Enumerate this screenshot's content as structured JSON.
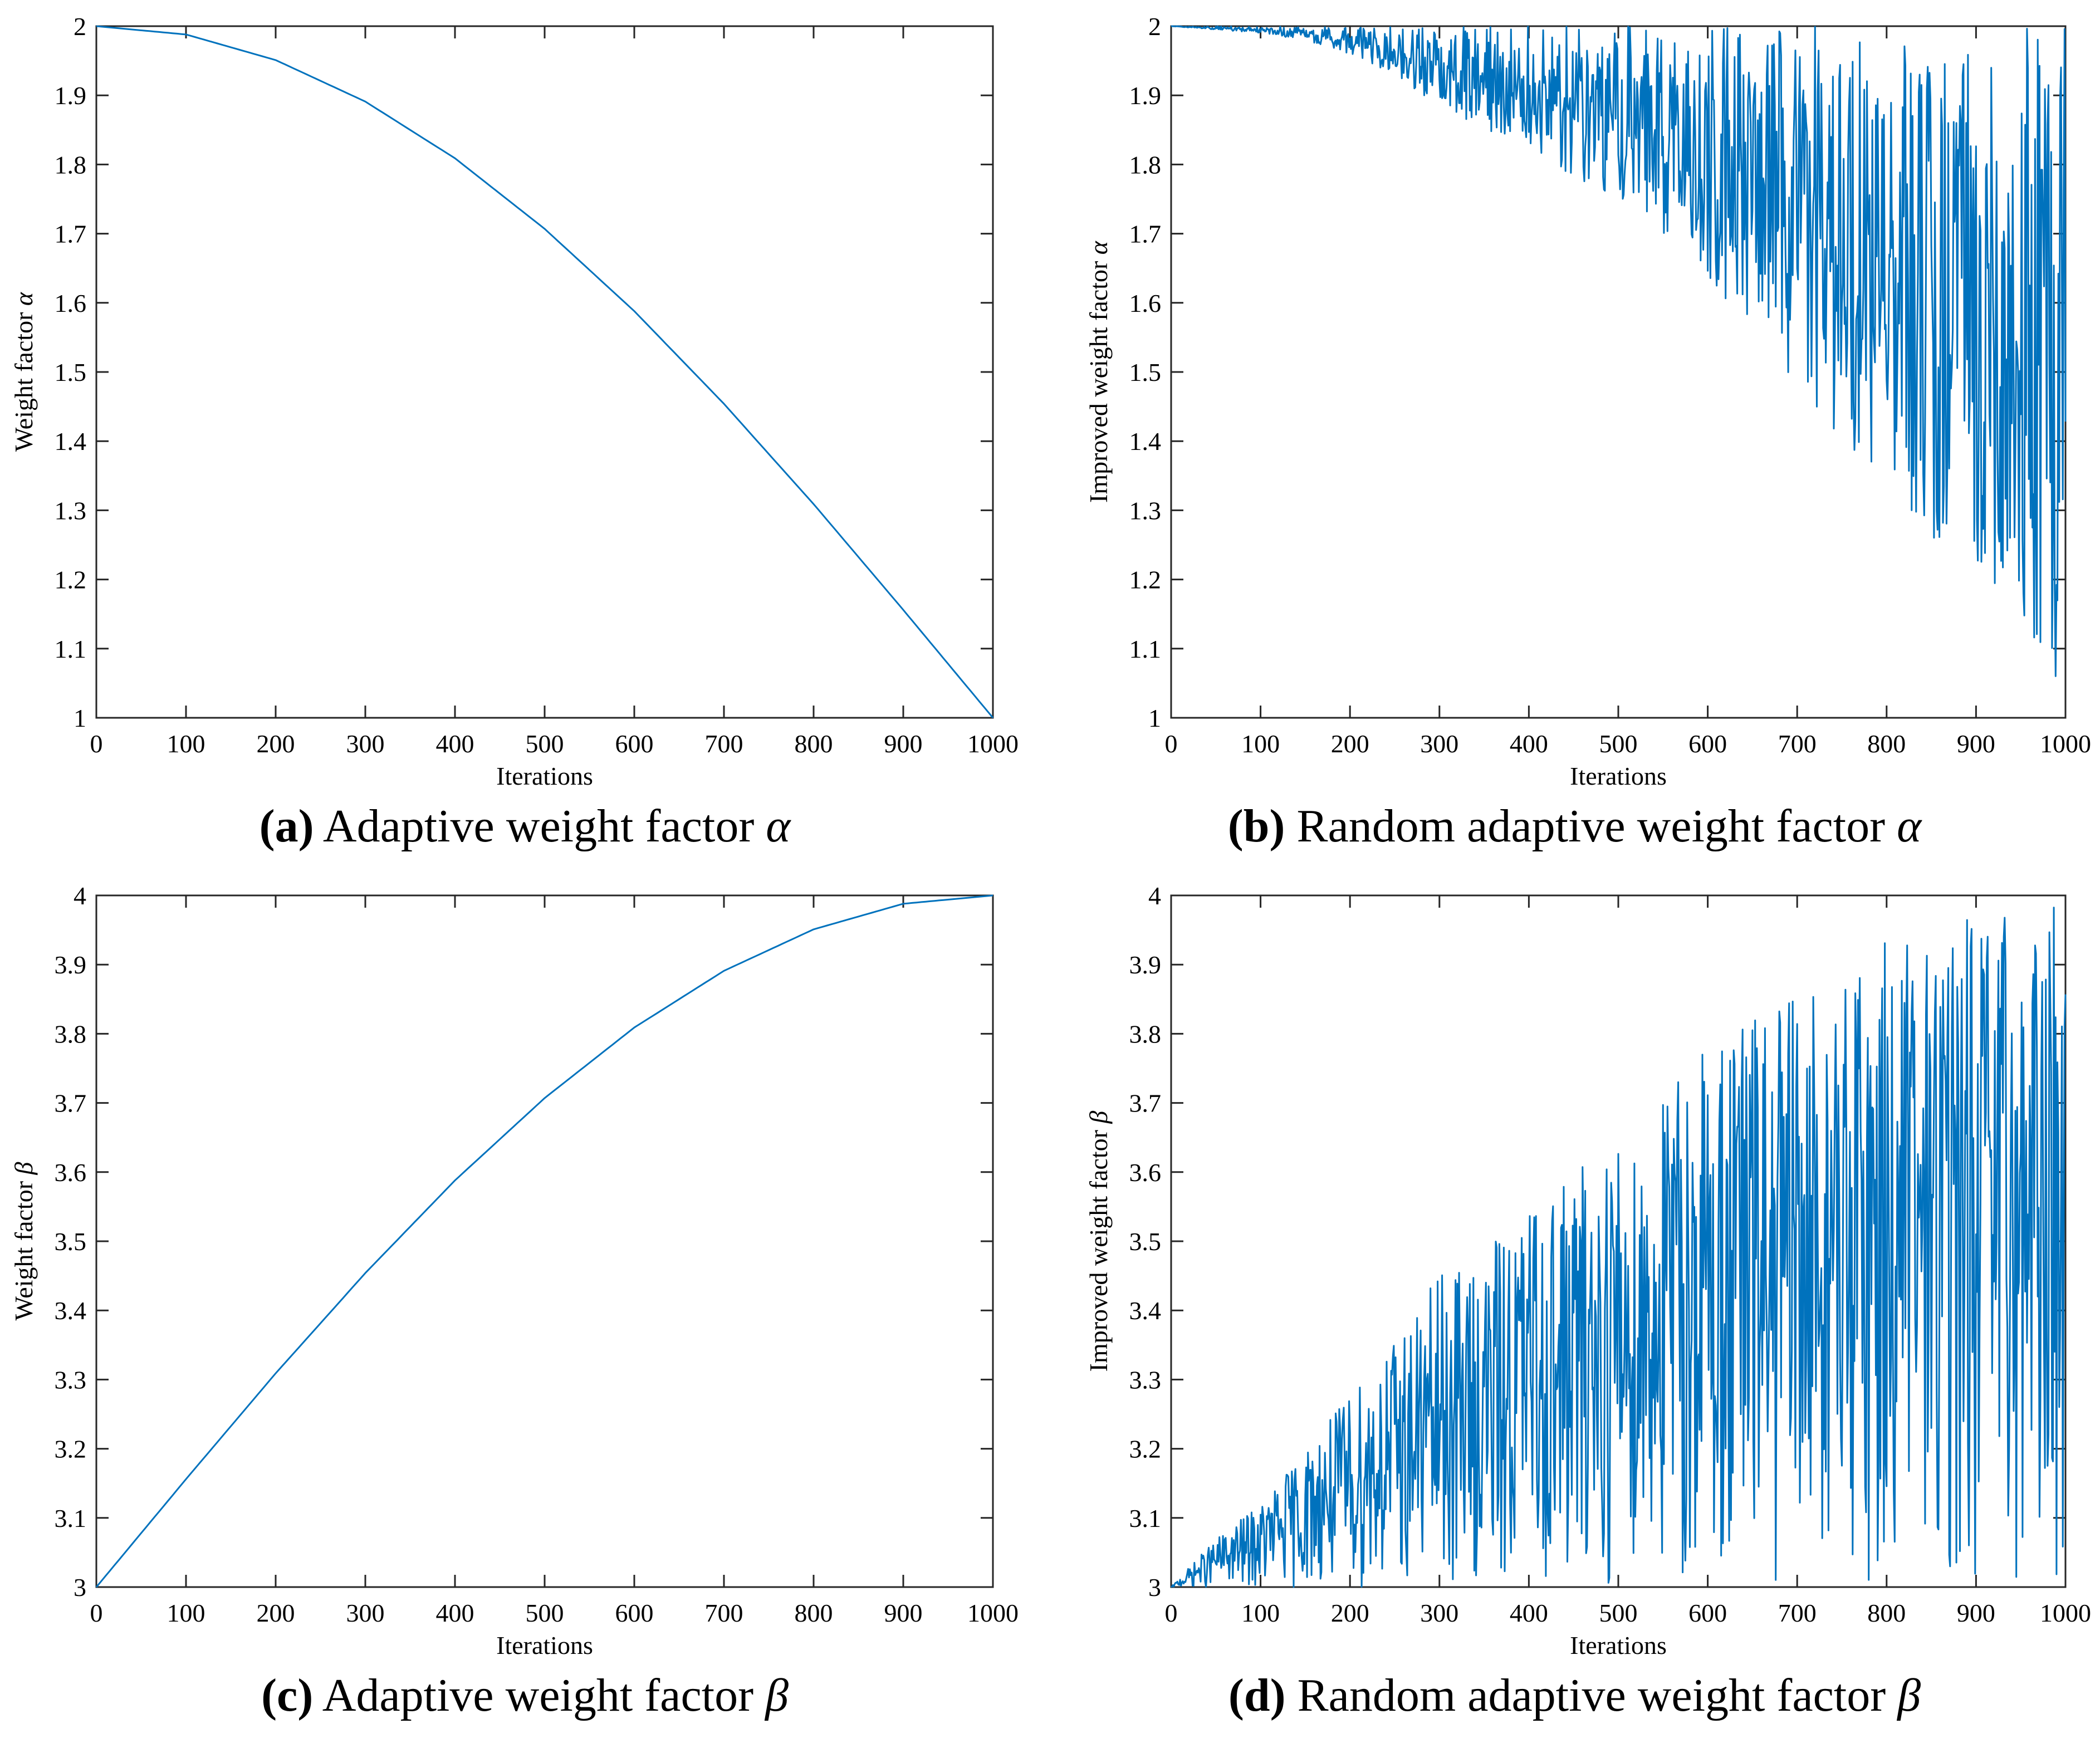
{
  "figure": {
    "line_color": "#0072BD",
    "panels": [
      {
        "id": "a",
        "caption_tag": "(a)",
        "caption_text": "Adaptive weight factor",
        "caption_symbol": "α"
      },
      {
        "id": "b",
        "caption_tag": "(b)",
        "caption_text": "Random adaptive weight factor",
        "caption_symbol": "α"
      },
      {
        "id": "c",
        "caption_tag": "(c)",
        "caption_text": "Adaptive weight factor",
        "caption_symbol": "β"
      },
      {
        "id": "d",
        "caption_tag": "(d)",
        "caption_text": "Random adaptive weight factor",
        "caption_symbol": "β"
      }
    ]
  },
  "chart_data": [
    {
      "panel": "a",
      "type": "line",
      "title": "",
      "xlabel": "Iterations",
      "ylabel": "Weight factor",
      "ylabel_symbol": "α",
      "xlim": [
        0,
        1000
      ],
      "ylim": [
        1,
        2
      ],
      "xticks": [
        0,
        100,
        200,
        300,
        400,
        500,
        600,
        700,
        800,
        900,
        1000
      ],
      "yticks": [
        1,
        1.1,
        1.2,
        1.3,
        1.4,
        1.5,
        1.6,
        1.7,
        1.8,
        1.9,
        2
      ],
      "ytick_labels": [
        "1",
        "1.1",
        "1.2",
        "1.3",
        "1.4",
        "1.5",
        "1.6",
        "1.7",
        "1.8",
        "1.9",
        "2"
      ],
      "grid": false,
      "series": [
        {
          "name": "alpha",
          "x": [
            0,
            100,
            200,
            300,
            400,
            500,
            600,
            700,
            800,
            900,
            1000
          ],
          "values": [
            2.0,
            1.988,
            1.951,
            1.891,
            1.809,
            1.707,
            1.588,
            1.454,
            1.309,
            1.156,
            1.0
          ]
        }
      ]
    },
    {
      "panel": "b",
      "type": "line",
      "title": "",
      "xlabel": "Iterations",
      "ylabel": "Improved weight factor",
      "ylabel_symbol": "α",
      "xlim": [
        0,
        1000
      ],
      "ylim": [
        1,
        2
      ],
      "xticks": [
        0,
        100,
        200,
        300,
        400,
        500,
        600,
        700,
        800,
        900,
        1000
      ],
      "yticks": [
        1,
        1.1,
        1.2,
        1.3,
        1.4,
        1.5,
        1.6,
        1.7,
        1.8,
        1.9,
        2
      ],
      "ytick_labels": [
        "1",
        "1.1",
        "1.2",
        "1.3",
        "1.4",
        "1.5",
        "1.6",
        "1.7",
        "1.8",
        "1.9",
        "2"
      ],
      "grid": false,
      "series": [
        {
          "name": "improved alpha",
          "x": [
            0,
            50,
            100,
            150,
            200,
            250,
            300,
            350,
            400,
            450,
            500,
            550,
            600,
            650,
            700,
            750,
            800,
            850,
            900,
            935,
            950,
            990,
            1000
          ],
          "values": [
            2.0,
            1.995,
            1.99,
            1.98,
            1.96,
            1.93,
            1.88,
            1.85,
            1.83,
            1.78,
            1.75,
            1.7,
            1.63,
            1.56,
            1.47,
            1.4,
            1.33,
            1.25,
            1.22,
            1.1,
            1.15,
            1.04,
            1.28
          ],
          "upper_envelope": 2.0,
          "note": "random oscillation between upper bound 2 and the listed lower envelope"
        }
      ]
    },
    {
      "panel": "c",
      "type": "line",
      "title": "",
      "xlabel": "Iterations",
      "ylabel": "Weight factor",
      "ylabel_symbol": "β",
      "xlim": [
        0,
        1000
      ],
      "ylim": [
        3,
        4
      ],
      "xticks": [
        0,
        100,
        200,
        300,
        400,
        500,
        600,
        700,
        800,
        900,
        1000
      ],
      "yticks": [
        3,
        3.1,
        3.2,
        3.3,
        3.4,
        3.5,
        3.6,
        3.7,
        3.8,
        3.9,
        4
      ],
      "ytick_labels": [
        "3",
        "3.1",
        "3.2",
        "3.3",
        "3.4",
        "3.5",
        "3.6",
        "3.7",
        "3.8",
        "3.9",
        "4"
      ],
      "grid": false,
      "series": [
        {
          "name": "beta",
          "x": [
            0,
            100,
            200,
            300,
            400,
            500,
            600,
            700,
            800,
            900,
            1000
          ],
          "values": [
            3.0,
            3.156,
            3.309,
            3.454,
            3.588,
            3.707,
            3.809,
            3.891,
            3.951,
            3.988,
            4.0
          ]
        }
      ]
    },
    {
      "panel": "d",
      "type": "line",
      "title": "",
      "xlabel": "Iterations",
      "ylabel": "Improved weight factor",
      "ylabel_symbol": "β",
      "xlim": [
        0,
        1000
      ],
      "ylim": [
        3,
        4
      ],
      "xticks": [
        0,
        100,
        200,
        300,
        400,
        500,
        600,
        700,
        800,
        900,
        1000
      ],
      "yticks": [
        3,
        3.1,
        3.2,
        3.3,
        3.4,
        3.5,
        3.6,
        3.7,
        3.8,
        3.9,
        4
      ],
      "ytick_labels": [
        "3",
        "3.1",
        "3.2",
        "3.3",
        "3.4",
        "3.5",
        "3.6",
        "3.7",
        "3.8",
        "3.9",
        "4"
      ],
      "grid": false,
      "series": [
        {
          "name": "improved beta",
          "x": [
            0,
            50,
            100,
            150,
            200,
            250,
            300,
            350,
            400,
            450,
            500,
            550,
            600,
            650,
            700,
            750,
            800,
            850,
            900,
            950,
            1000
          ],
          "values": [
            3.0,
            3.07,
            3.12,
            3.2,
            3.28,
            3.36,
            3.45,
            3.48,
            3.56,
            3.6,
            3.66,
            3.72,
            3.8,
            3.84,
            3.86,
            3.88,
            3.96,
            3.97,
            3.99,
            3.99,
            4.0
          ],
          "lower_envelope": 3.0,
          "note": "random oscillation between lower bound 3 and the listed upper envelope"
        }
      ]
    }
  ]
}
